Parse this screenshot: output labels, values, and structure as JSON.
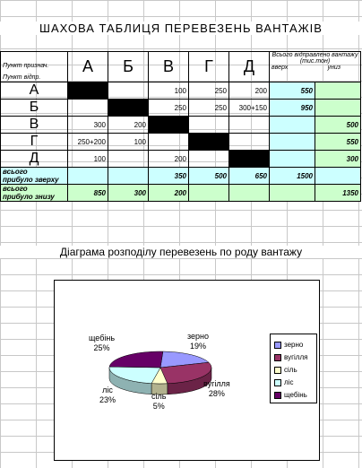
{
  "title": "ШАХОВА ТАБЛИЦЯ ПЕРЕВЕЗЕНЬ ВАНТАЖІВ",
  "header": {
    "dest_label": "Пункт признач.",
    "origin_label": "Пункт відпр.",
    "columns": [
      "А",
      "Б",
      "В",
      "Г",
      "Д"
    ],
    "sent_title": "Всього відправлено вантажу (тис.тон)",
    "up_label": "вверх",
    "down_label": "униз"
  },
  "rows": [
    {
      "label": "А",
      "cells": [
        "",
        "",
        "100",
        "250",
        "200"
      ],
      "up": "550",
      "down": ""
    },
    {
      "label": "Б",
      "cells": [
        "",
        "",
        "250",
        "250",
        "300+150"
      ],
      "up": "950",
      "down": ""
    },
    {
      "label": "В",
      "cells": [
        "300",
        "200",
        "",
        "",
        ""
      ],
      "up": "",
      "down": "500"
    },
    {
      "label": "Г",
      "cells": [
        "250+200",
        "100",
        "",
        "",
        ""
      ],
      "up": "",
      "down": "550"
    },
    {
      "label": "Д",
      "cells": [
        "100",
        "",
        "200",
        "",
        ""
      ],
      "up": "",
      "down": "300"
    }
  ],
  "totals_top": {
    "label_1": "всього",
    "label_2": "прибуло зверху",
    "values": [
      "",
      "",
      "350",
      "500",
      "650"
    ],
    "sum": "1500"
  },
  "totals_bottom": {
    "label_1": "всього",
    "label_2": "прибуло знизу",
    "values": [
      "850",
      "300",
      "200",
      "",
      ""
    ],
    "sum": "1350"
  },
  "diagram_title": "Діаграма розподілу перевезень по роду вантажу",
  "chart_data": {
    "type": "pie",
    "title": "",
    "categories": [
      "зерно",
      "вугілля",
      "сіль",
      "ліс",
      "щебінь"
    ],
    "values": [
      19,
      28,
      5,
      23,
      25
    ],
    "value_labels": [
      "19%",
      "28%",
      "5%",
      "23%",
      "25%"
    ],
    "colors": [
      "#9999ff",
      "#993366",
      "#ffffcc",
      "#ccffff",
      "#660066"
    ],
    "legend": "right",
    "style": "3d"
  }
}
